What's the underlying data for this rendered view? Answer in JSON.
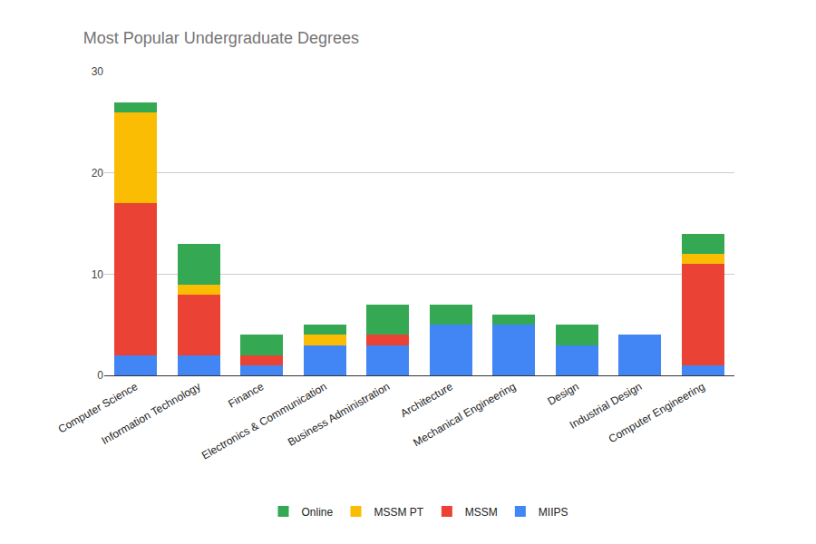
{
  "chart_data": {
    "type": "bar",
    "title": "Most Popular Undergraduate Degrees",
    "categories": [
      "Computer Science",
      "Information Technology",
      "Finance",
      "Electronics & Communication",
      "Business Administration",
      "Architecture",
      "Mechanical Engineering",
      "Design",
      "Industrial Design",
      "Computer Engineering"
    ],
    "series": [
      {
        "name": "MIIPS",
        "color": "#4285f4",
        "values": [
          2,
          2,
          1,
          3,
          3,
          5,
          5,
          3,
          4,
          1
        ]
      },
      {
        "name": "MSSM",
        "color": "#ea4335",
        "values": [
          15,
          6,
          1,
          0,
          1,
          0,
          0,
          0,
          0,
          10
        ]
      },
      {
        "name": "MSSM PT",
        "color": "#fbbc04",
        "values": [
          9,
          1,
          0,
          1,
          0,
          0,
          0,
          0,
          0,
          1
        ]
      },
      {
        "name": "Online",
        "color": "#34a853",
        "values": [
          1,
          4,
          2,
          1,
          3,
          2,
          1,
          2,
          0,
          2
        ]
      }
    ],
    "stacked": true,
    "ylim": [
      0,
      30
    ],
    "yticks": [
      0,
      10,
      20,
      30
    ],
    "grid": true,
    "legend": "bottom"
  }
}
